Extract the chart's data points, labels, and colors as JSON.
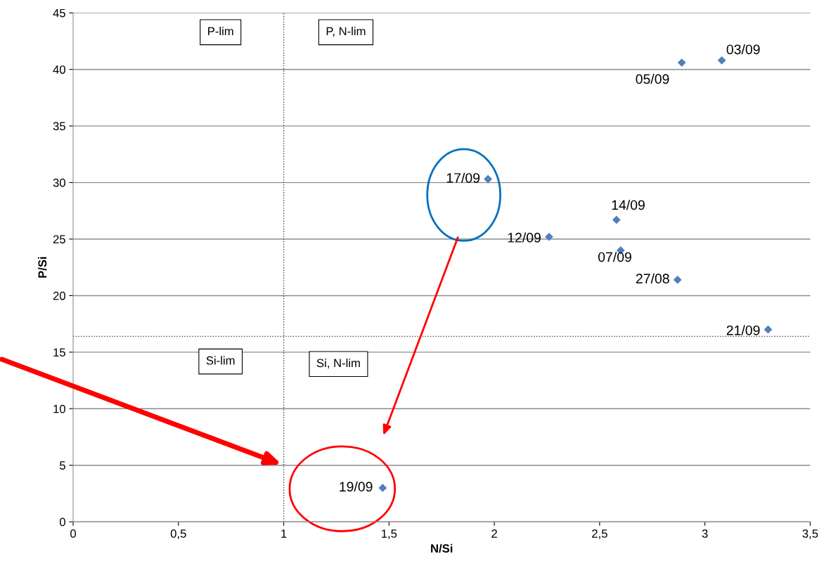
{
  "chart_data": {
    "type": "scatter",
    "xlabel": "N/Si",
    "ylabel": "P/Si",
    "x": [
      3.08,
      2.89,
      1.97,
      2.58,
      2.26,
      2.6,
      2.87,
      3.3,
      1.47
    ],
    "series": [
      {
        "color": "#4f81bd",
        "values": [
          40.8,
          40.6,
          30.3,
          26.7,
          25.2,
          24.0,
          21.4,
          17.0,
          3.0
        ]
      }
    ],
    "marker": "diamond",
    "grid": "y",
    "legend": false,
    "xlim": [
      0,
      3.5
    ],
    "ylim": [
      0,
      45
    ],
    "xticks": [
      0,
      {
        "value": 0.5,
        "label": "0,5"
      },
      1,
      {
        "value": 1.5,
        "label": "1,5"
      },
      2,
      {
        "value": 2.5,
        "label": "2,5"
      },
      3,
      {
        "value": 3.5,
        "label": "3,5"
      }
    ],
    "yticks": [
      0,
      5,
      10,
      15,
      20,
      25,
      30,
      35,
      40,
      45
    ],
    "ref_lines": [
      {
        "axis": "x",
        "value": 1,
        "color": "#404040",
        "line_style": "dotted"
      },
      {
        "axis": "y",
        "value": 16.4,
        "color": "#404040",
        "line_style": "dotted"
      }
    ],
    "annotations": [
      "P-lim",
      "P, N-lim",
      "Si-lim",
      "Si, N-lim",
      {
        "text": "03/09",
        "x": 3.08,
        "y": 40.8
      },
      {
        "text": "05/09",
        "x": 2.89,
        "y": 40.6
      },
      {
        "text": "17/09",
        "x": 1.97,
        "y": 30.3
      },
      {
        "text": "14/09",
        "x": 2.58,
        "y": 26.7
      },
      {
        "text": "12/09",
        "x": 2.26,
        "y": 25.2
      },
      {
        "text": "07/09",
        "x": 2.6,
        "y": 24.0
      },
      {
        "text": "27/08",
        "x": 2.87,
        "y": 21.4
      },
      {
        "text": "21/09",
        "x": 3.3,
        "y": 17.0
      },
      {
        "text": "19/09",
        "x": 1.47,
        "y": 3.0
      }
    ]
  }
}
